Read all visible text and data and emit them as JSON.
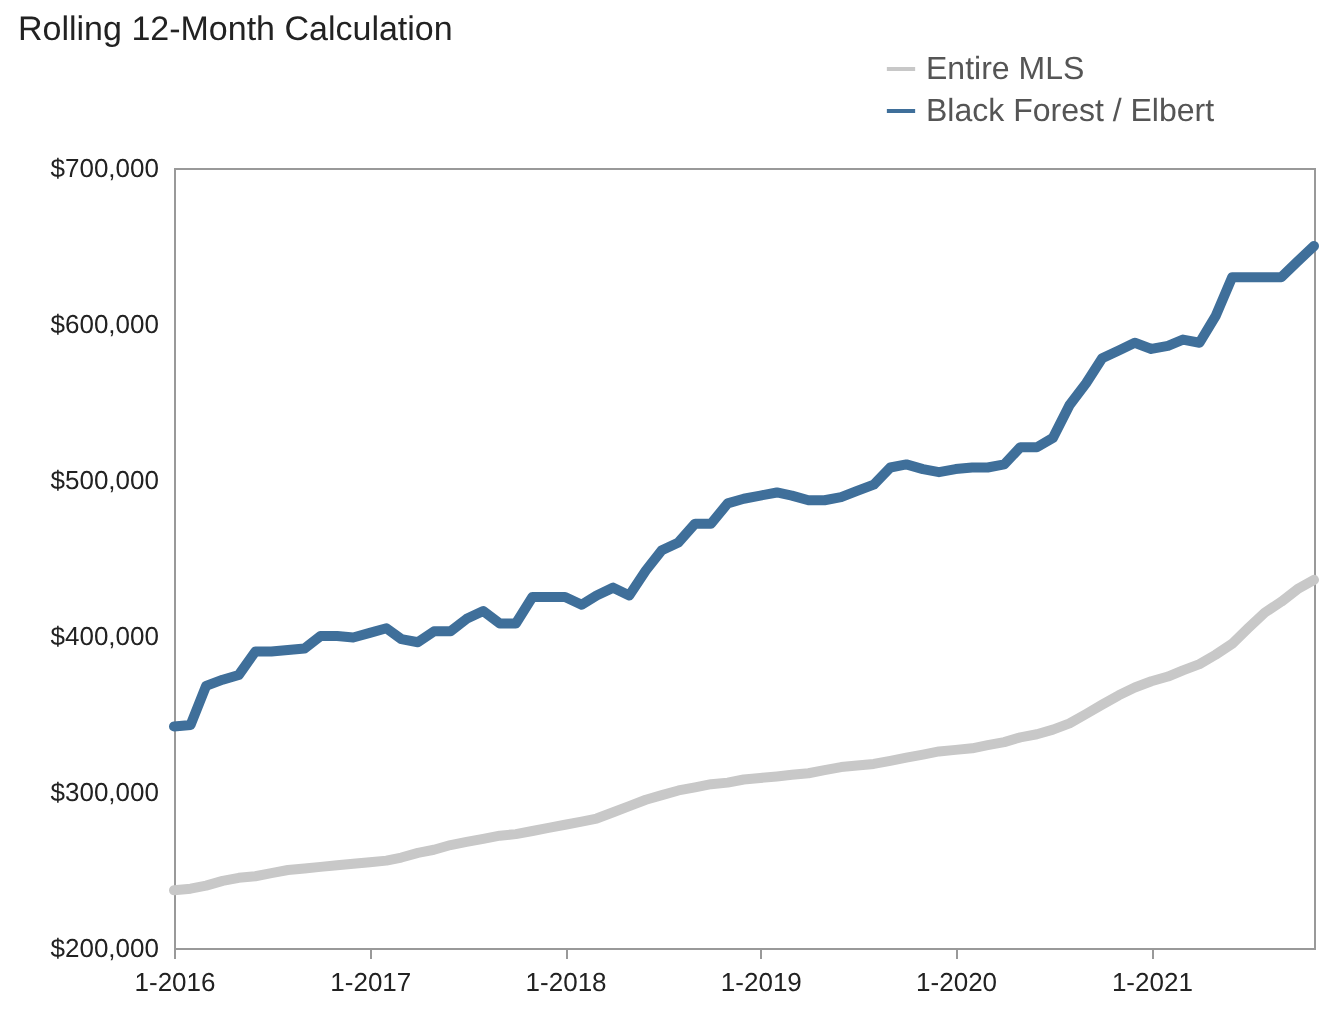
{
  "chart_data": {
    "type": "line",
    "title": "Rolling 12-Month Calculation",
    "x": [
      "2016-01",
      "2016-02",
      "2016-03",
      "2016-04",
      "2016-05",
      "2016-06",
      "2016-07",
      "2016-08",
      "2016-09",
      "2016-10",
      "2016-11",
      "2016-12",
      "2017-01",
      "2017-02",
      "2017-03",
      "2017-04",
      "2017-05",
      "2017-06",
      "2017-07",
      "2017-08",
      "2017-09",
      "2017-10",
      "2017-11",
      "2017-12",
      "2018-01",
      "2018-02",
      "2018-03",
      "2018-04",
      "2018-05",
      "2018-06",
      "2018-07",
      "2018-08",
      "2018-09",
      "2018-10",
      "2018-11",
      "2018-12",
      "2019-01",
      "2019-02",
      "2019-03",
      "2019-04",
      "2019-05",
      "2019-06",
      "2019-07",
      "2019-08",
      "2019-09",
      "2019-10",
      "2019-11",
      "2019-12",
      "2020-01",
      "2020-02",
      "2020-03",
      "2020-04",
      "2020-05",
      "2020-06",
      "2020-07",
      "2020-08",
      "2020-09",
      "2020-10",
      "2020-11",
      "2020-12",
      "2021-01",
      "2021-02",
      "2021-03",
      "2021-04",
      "2021-05",
      "2021-06",
      "2021-07",
      "2021-08",
      "2021-09",
      "2021-10",
      "2021-11"
    ],
    "series": [
      {
        "name": "Entire MLS",
        "color": "#c8c8c8",
        "values": [
          237000,
          238000,
          240000,
          243000,
          245000,
          246000,
          248000,
          250000,
          251000,
          252000,
          253000,
          254000,
          255000,
          256000,
          258000,
          261000,
          263000,
          266000,
          268000,
          270000,
          272000,
          273000,
          275000,
          277000,
          279000,
          281000,
          283000,
          287000,
          291000,
          295000,
          298000,
          301000,
          303000,
          305000,
          306000,
          308000,
          309000,
          310000,
          311000,
          312000,
          314000,
          316000,
          317000,
          318000,
          320000,
          322000,
          324000,
          326000,
          327000,
          328000,
          330000,
          332000,
          335000,
          337000,
          340000,
          344000,
          350000,
          356000,
          362000,
          367000,
          371000,
          374000,
          378000,
          382000,
          388000,
          395000,
          405000,
          415000,
          422000,
          430000,
          436000
        ]
      },
      {
        "name": "Black Forest / Elbert",
        "color": "#3f6f9a",
        "values": [
          342000,
          343000,
          368000,
          372000,
          375000,
          390000,
          390000,
          391000,
          392000,
          400000,
          400000,
          399000,
          402000,
          405000,
          398000,
          396000,
          403000,
          403000,
          411000,
          416000,
          408000,
          408000,
          425000,
          425000,
          425000,
          420000,
          426000,
          431000,
          426000,
          442000,
          455000,
          460000,
          472000,
          472000,
          485000,
          488000,
          490000,
          492000,
          490000,
          487000,
          487000,
          489000,
          493000,
          497000,
          508000,
          510000,
          507000,
          505000,
          507000,
          508000,
          508000,
          510000,
          521000,
          521000,
          527000,
          548000,
          562000,
          578000,
          583000,
          588000,
          584000,
          586000,
          590000,
          588000,
          605000,
          630000,
          630000,
          630000,
          630000,
          640000,
          650000
        ]
      }
    ],
    "xlim": [
      "2016-01",
      "2021-11"
    ],
    "xticks": [
      {
        "value": "2016-01",
        "label": "1-2016"
      },
      {
        "value": "2017-01",
        "label": "1-2017"
      },
      {
        "value": "2018-01",
        "label": "1-2018"
      },
      {
        "value": "2019-01",
        "label": "1-2019"
      },
      {
        "value": "2020-01",
        "label": "1-2020"
      },
      {
        "value": "2021-01",
        "label": "1-2021"
      }
    ],
    "ylim": [
      200000,
      700000
    ],
    "yticks": [
      {
        "value": 200000,
        "label": "$200,000"
      },
      {
        "value": 300000,
        "label": "$300,000"
      },
      {
        "value": 400000,
        "label": "$400,000"
      },
      {
        "value": 500000,
        "label": "$500,000"
      },
      {
        "value": 600000,
        "label": "$600,000"
      },
      {
        "value": 700000,
        "label": "$700,000"
      }
    ],
    "legend": "top right",
    "line_style": "solid",
    "marker": "none"
  }
}
